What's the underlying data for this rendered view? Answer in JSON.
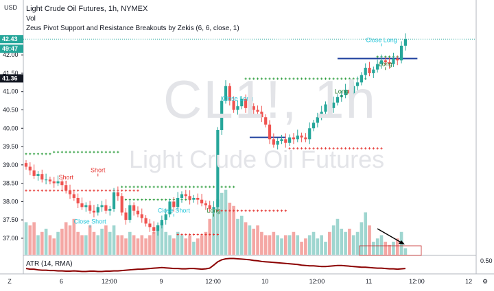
{
  "title": "Light Crude Oil Futures, 1h, NYMEX",
  "volume_label": "Vol",
  "indicator_label": "Zeus Pivot Support and Resistance Breakouts by Zekis (6, 6, close, 1)",
  "currency": "USD",
  "watermark_symbol": "CL1!, 1h",
  "watermark_name": "Light Crude Oil Futures",
  "atr_label": "ATR (14, RMA)",
  "atr_axis_value": "0.50",
  "price_pill": "42.43",
  "time_pill": "49:47",
  "cross_pill": "41.36",
  "colors": {
    "up": "#26a69a",
    "down": "#ef5350",
    "support_plus": "#2e9e3e",
    "resistance_plus": "#e53935",
    "breakout_line": "#1e3f9e",
    "atr": "#8b0000",
    "long_text": "#2e7d32",
    "short_text": "#e53935",
    "close_text": "#26c6da"
  },
  "chart_data": {
    "type": "candlestick",
    "title": "Light Crude Oil Futures, 1h, NYMEX",
    "price_axis": {
      "ticks": [
        "42.00",
        "41.50",
        "41.00",
        "40.50",
        "40.00",
        "39.50",
        "39.00",
        "38.50",
        "38.00",
        "37.50",
        "37.00"
      ],
      "range": [
        36.55,
        42.9
      ]
    },
    "time_axis": {
      "ticks": [
        "6",
        "12:00",
        "9",
        "12:00",
        "10",
        "12:00",
        "11",
        "12:00",
        "12"
      ]
    },
    "candles_close": [
      38.95,
      38.85,
      38.7,
      38.75,
      38.6,
      38.6,
      38.55,
      38.5,
      38.55,
      38.45,
      38.3,
      38.2,
      38.1,
      37.95,
      37.85,
      37.9,
      37.75,
      37.7,
      37.85,
      37.9,
      37.75,
      37.8,
      38.25,
      38.15,
      37.7,
      37.5,
      37.9,
      37.75,
      37.65,
      37.55,
      37.4,
      37.3,
      37.2,
      37.35,
      37.5,
      37.65,
      38.0,
      37.85,
      38.1,
      38.2,
      38.15,
      38.05,
      38.1,
      38.05,
      37.95,
      37.9,
      37.8,
      37.85,
      39.95,
      40.75,
      41.15,
      40.75,
      40.5,
      40.6,
      40.8,
      40.55,
      40.6,
      40.5,
      40.45,
      40.3,
      40.1,
      39.7,
      39.55,
      39.65,
      39.7,
      39.6,
      39.75,
      39.7,
      39.8,
      39.75,
      39.7,
      40.0,
      40.15,
      40.3,
      40.45,
      40.65,
      40.55,
      40.7,
      40.85,
      40.9,
      41.05,
      40.95,
      41.15,
      41.25,
      41.45,
      41.65,
      41.5,
      41.6,
      41.75,
      41.85,
      41.8,
      41.75,
      41.9,
      41.85,
      42.25,
      42.43
    ],
    "volume": [
      0.5,
      0.45,
      0.5,
      0.3,
      0.35,
      0.4,
      0.3,
      0.25,
      0.35,
      0.4,
      0.5,
      0.45,
      0.55,
      0.35,
      0.3,
      0.3,
      0.45,
      0.35,
      0.3,
      0.4,
      0.45,
      0.35,
      0.45,
      0.3,
      0.3,
      0.25,
      0.35,
      0.3,
      0.25,
      0.3,
      0.25,
      0.3,
      0.35,
      0.45,
      0.5,
      0.35,
      0.3,
      0.25,
      0.35,
      0.3,
      0.25,
      0.3,
      0.2,
      0.25,
      0.3,
      0.35,
      0.55,
      0.7,
      0.85,
      0.95,
      1.0,
      0.8,
      0.75,
      0.55,
      0.6,
      0.5,
      0.45,
      0.4,
      0.45,
      0.35,
      0.3,
      0.3,
      0.35,
      0.3,
      0.25,
      0.3,
      0.3,
      0.35,
      0.3,
      0.2,
      0.25,
      0.3,
      0.35,
      0.25,
      0.3,
      0.2,
      0.35,
      0.45,
      0.55,
      0.4,
      0.35,
      0.4,
      0.3,
      0.35,
      0.5,
      0.65,
      0.45,
      0.2,
      0.25,
      0.3,
      0.2,
      0.15,
      0.2,
      0.25,
      0.35,
      0.1
    ],
    "atr": [
      0.42,
      0.4,
      0.4,
      0.38,
      0.37,
      0.37,
      0.36,
      0.36,
      0.35,
      0.35,
      0.34,
      0.34,
      0.35,
      0.34,
      0.33,
      0.33,
      0.34,
      0.34,
      0.33,
      0.33,
      0.34,
      0.34,
      0.35,
      0.35,
      0.36,
      0.37,
      0.38,
      0.39,
      0.4,
      0.4,
      0.41,
      0.42,
      0.43,
      0.44,
      0.45,
      0.44,
      0.43,
      0.42,
      0.42,
      0.41,
      0.41,
      0.42,
      0.42,
      0.41,
      0.4,
      0.41,
      0.43,
      0.52,
      0.62,
      0.68,
      0.71,
      0.72,
      0.72,
      0.71,
      0.7,
      0.69,
      0.68,
      0.66,
      0.65,
      0.63,
      0.62,
      0.61,
      0.6,
      0.59,
      0.58,
      0.57,
      0.56,
      0.55,
      0.54,
      0.52,
      0.51,
      0.5,
      0.5,
      0.49,
      0.48,
      0.48,
      0.49,
      0.5,
      0.51,
      0.51,
      0.5,
      0.49,
      0.48,
      0.47,
      0.46,
      0.46,
      0.45,
      0.44,
      0.43,
      0.43,
      0.42,
      0.41,
      0.41,
      0.4,
      0.41,
      0.42
    ],
    "resistance_levels": [
      {
        "price": 38.3,
        "from": 0,
        "to": 28
      },
      {
        "price": 37.1,
        "from": 38,
        "to": 48
      },
      {
        "price": 37.75,
        "from": 48,
        "to": 65
      },
      {
        "price": 39.45,
        "from": 66,
        "to": 89
      }
    ],
    "support_levels": [
      {
        "price": 39.3,
        "from": 0,
        "to": 6
      },
      {
        "price": 39.35,
        "from": 7,
        "to": 23
      },
      {
        "price": 38.05,
        "from": 24,
        "to": 41
      },
      {
        "price": 38.4,
        "from": 24,
        "to": 41
      },
      {
        "price": 38.4,
        "from": 42,
        "to": 52
      },
      {
        "price": 41.35,
        "from": 55,
        "to": 85
      },
      {
        "price": 41.95,
        "from": 88,
        "to": 94
      }
    ],
    "breakout_lines": [
      {
        "price": 39.75,
        "from": 56,
        "to": 65
      },
      {
        "price": 41.9,
        "from": 78,
        "to": 98
      }
    ],
    "signals": [
      {
        "label": "Short",
        "index": 10,
        "price": 38.6,
        "kind": "short"
      },
      {
        "label": "Short",
        "index": 18,
        "price": 38.8,
        "kind": "short"
      },
      {
        "label": "Close Short",
        "index": 16,
        "price": 37.4,
        "kind": "close"
      },
      {
        "label": "Close Short",
        "index": 37,
        "price": 37.7,
        "kind": "close"
      },
      {
        "label": "Long",
        "index": 47,
        "price": 37.7,
        "kind": "long"
      },
      {
        "label": "Close Long",
        "index": 53,
        "price": 40.75,
        "kind": "close"
      },
      {
        "label": "Long",
        "index": 79,
        "price": 40.95,
        "kind": "long"
      },
      {
        "label": "Close Long",
        "index": 89,
        "price": 42.35,
        "kind": "close"
      },
      {
        "label": "Long",
        "index": 90,
        "price": 41.7,
        "kind": "long"
      }
    ]
  }
}
